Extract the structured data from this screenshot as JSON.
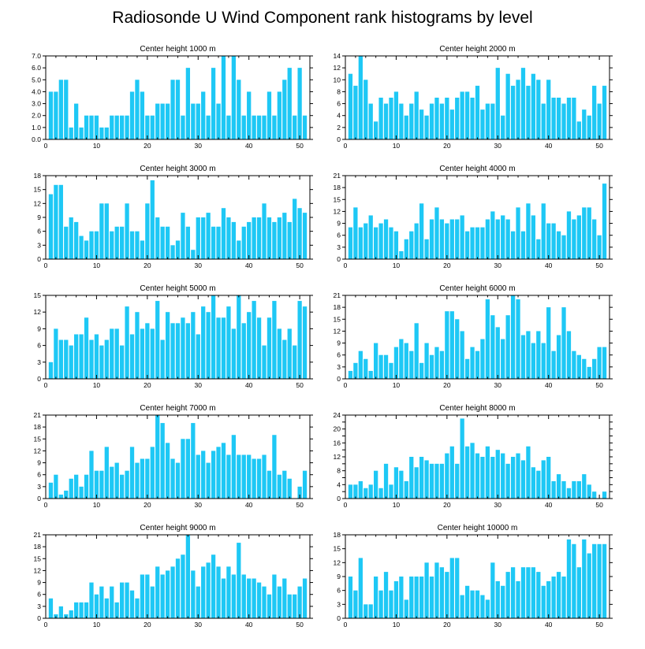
{
  "title": "Radiosonde U Wind Component rank histograms by level",
  "bar_color": "#1ec8f5",
  "chart_data": [
    {
      "type": "bar",
      "title": "Center height 1000 m",
      "xlim": [
        0,
        52
      ],
      "ylim": [
        0,
        7
      ],
      "xticks": [
        0,
        10,
        20,
        30,
        40,
        50
      ],
      "yticks": [
        0,
        1,
        2,
        3,
        4,
        5,
        6,
        7
      ],
      "ytick_labels": [
        "0.0",
        "1.0",
        "2.0",
        "3.0",
        "4.0",
        "5.0",
        "6.0",
        "7.0"
      ],
      "x": [
        1,
        2,
        3,
        4,
        5,
        6,
        7,
        8,
        9,
        10,
        11,
        12,
        13,
        14,
        15,
        16,
        17,
        18,
        19,
        20,
        21,
        22,
        23,
        24,
        25,
        26,
        27,
        28,
        29,
        30,
        31,
        32,
        33,
        34,
        35,
        36,
        37,
        38,
        39,
        40,
        41,
        42,
        43,
        44,
        45,
        46,
        47,
        48,
        49,
        50,
        51
      ],
      "values": [
        4,
        4,
        5,
        5,
        1,
        3,
        1,
        2,
        2,
        2,
        1,
        1,
        2,
        2,
        2,
        2,
        4,
        5,
        4,
        2,
        2,
        3,
        3,
        3,
        5,
        5,
        2,
        6,
        3,
        3,
        4,
        2,
        6,
        3,
        7,
        2,
        7,
        5,
        2,
        4,
        2,
        2,
        2,
        4,
        2,
        4,
        5,
        6,
        2,
        6,
        2
      ]
    },
    {
      "type": "bar",
      "title": "Center height 2000 m",
      "xlim": [
        0,
        52
      ],
      "ylim": [
        0,
        14
      ],
      "xticks": [
        0,
        10,
        20,
        30,
        40,
        50
      ],
      "yticks": [
        0,
        2,
        4,
        6,
        8,
        10,
        12,
        14
      ],
      "ytick_labels": [
        "0",
        "2",
        "4",
        "6",
        "8",
        "10",
        "12",
        "14"
      ],
      "x": [
        1,
        2,
        3,
        4,
        5,
        6,
        7,
        8,
        9,
        10,
        11,
        12,
        13,
        14,
        15,
        16,
        17,
        18,
        19,
        20,
        21,
        22,
        23,
        24,
        25,
        26,
        27,
        28,
        29,
        30,
        31,
        32,
        33,
        34,
        35,
        36,
        37,
        38,
        39,
        40,
        41,
        42,
        43,
        44,
        45,
        46,
        47,
        48,
        49,
        50,
        51
      ],
      "values": [
        11,
        9,
        14,
        10,
        6,
        3,
        7,
        6,
        7,
        8,
        6,
        4,
        6,
        8,
        5,
        4,
        6,
        7,
        6,
        7,
        5,
        7,
        8,
        8,
        7,
        9,
        5,
        6,
        6,
        12,
        4,
        11,
        9,
        10,
        12,
        9,
        11,
        10,
        6,
        10,
        7,
        7,
        6,
        7,
        7,
        3,
        5,
        4,
        9,
        6,
        9
      ]
    },
    {
      "type": "bar",
      "title": "Center height 3000 m",
      "xlim": [
        0,
        52
      ],
      "ylim": [
        0,
        18
      ],
      "xticks": [
        0,
        10,
        20,
        30,
        40,
        50
      ],
      "yticks": [
        0,
        3,
        6,
        9,
        12,
        15,
        18
      ],
      "ytick_labels": [
        "0",
        "3",
        "6",
        "9",
        "12",
        "15",
        "18"
      ],
      "x": [
        1,
        2,
        3,
        4,
        5,
        6,
        7,
        8,
        9,
        10,
        11,
        12,
        13,
        14,
        15,
        16,
        17,
        18,
        19,
        20,
        21,
        22,
        23,
        24,
        25,
        26,
        27,
        28,
        29,
        30,
        31,
        32,
        33,
        34,
        35,
        36,
        37,
        38,
        39,
        40,
        41,
        42,
        43,
        44,
        45,
        46,
        47,
        48,
        49,
        50,
        51
      ],
      "values": [
        14,
        16,
        16,
        7,
        9,
        8,
        5,
        4,
        6,
        6,
        12,
        12,
        6,
        7,
        7,
        12,
        6,
        6,
        4,
        12,
        17,
        9,
        7,
        7,
        3,
        4,
        10,
        7,
        2,
        9,
        9,
        10,
        7,
        7,
        11,
        9,
        8,
        4,
        7,
        8,
        9,
        9,
        12,
        9,
        8,
        9,
        10,
        8,
        13,
        11,
        10
      ]
    },
    {
      "type": "bar",
      "title": "Center height 4000 m",
      "xlim": [
        0,
        52
      ],
      "ylim": [
        0,
        21
      ],
      "xticks": [
        0,
        10,
        20,
        30,
        40,
        50
      ],
      "yticks": [
        0,
        3,
        6,
        9,
        12,
        15,
        18,
        21
      ],
      "ytick_labels": [
        "0",
        "3",
        "6",
        "9",
        "12",
        "15",
        "18",
        "21"
      ],
      "x": [
        1,
        2,
        3,
        4,
        5,
        6,
        7,
        8,
        9,
        10,
        11,
        12,
        13,
        14,
        15,
        16,
        17,
        18,
        19,
        20,
        21,
        22,
        23,
        24,
        25,
        26,
        27,
        28,
        29,
        30,
        31,
        32,
        33,
        34,
        35,
        36,
        37,
        38,
        39,
        40,
        41,
        42,
        43,
        44,
        45,
        46,
        47,
        48,
        49,
        50,
        51
      ],
      "values": [
        8,
        13,
        8,
        9,
        11,
        8,
        9,
        10,
        8,
        7,
        2,
        5,
        7,
        9,
        14,
        5,
        10,
        13,
        10,
        9,
        10,
        10,
        11,
        7,
        8,
        8,
        8,
        10,
        12,
        10,
        11,
        10,
        7,
        13,
        7,
        14,
        11,
        5,
        14,
        9,
        9,
        7,
        6,
        12,
        10,
        11,
        13,
        13,
        10,
        6,
        19
      ]
    },
    {
      "type": "bar",
      "title": "Center height 5000 m",
      "xlim": [
        0,
        52
      ],
      "ylim": [
        0,
        15
      ],
      "xticks": [
        0,
        10,
        20,
        30,
        40,
        50
      ],
      "yticks": [
        0,
        3,
        6,
        9,
        12,
        15
      ],
      "ytick_labels": [
        "0",
        "3",
        "6",
        "9",
        "12",
        "15"
      ],
      "x": [
        1,
        2,
        3,
        4,
        5,
        6,
        7,
        8,
        9,
        10,
        11,
        12,
        13,
        14,
        15,
        16,
        17,
        18,
        19,
        20,
        21,
        22,
        23,
        24,
        25,
        26,
        27,
        28,
        29,
        30,
        31,
        32,
        33,
        34,
        35,
        36,
        37,
        38,
        39,
        40,
        41,
        42,
        43,
        44,
        45,
        46,
        47,
        48,
        49,
        50,
        51
      ],
      "values": [
        3,
        9,
        7,
        7,
        6,
        8,
        8,
        11,
        7,
        8,
        6,
        7,
        9,
        9,
        6,
        13,
        8,
        12,
        9,
        10,
        9,
        14,
        7,
        12,
        10,
        10,
        11,
        10,
        12,
        8,
        13,
        12,
        15,
        11,
        11,
        13,
        9,
        15,
        10,
        12,
        14,
        11,
        6,
        11,
        14,
        9,
        7,
        9,
        6,
        14,
        13
      ]
    },
    {
      "type": "bar",
      "title": "Center height 6000 m",
      "xlim": [
        0,
        52
      ],
      "ylim": [
        0,
        21
      ],
      "xticks": [
        0,
        10,
        20,
        30,
        40,
        50
      ],
      "yticks": [
        0,
        3,
        6,
        9,
        12,
        15,
        18,
        21
      ],
      "ytick_labels": [
        "0",
        "3",
        "6",
        "9",
        "12",
        "15",
        "18",
        "21"
      ],
      "x": [
        1,
        2,
        3,
        4,
        5,
        6,
        7,
        8,
        9,
        10,
        11,
        12,
        13,
        14,
        15,
        16,
        17,
        18,
        19,
        20,
        21,
        22,
        23,
        24,
        25,
        26,
        27,
        28,
        29,
        30,
        31,
        32,
        33,
        34,
        35,
        36,
        37,
        38,
        39,
        40,
        41,
        42,
        43,
        44,
        45,
        46,
        47,
        48,
        49,
        50,
        51
      ],
      "values": [
        2,
        4,
        7,
        5,
        2,
        9,
        6,
        6,
        4,
        8,
        10,
        9,
        7,
        14,
        4,
        9,
        6,
        8,
        7,
        17,
        17,
        15,
        12,
        5,
        8,
        7,
        10,
        20,
        16,
        13,
        10,
        16,
        21,
        20,
        11,
        12,
        9,
        12,
        9,
        18,
        7,
        11,
        18,
        12,
        7,
        6,
        5,
        3,
        5,
        8,
        8
      ]
    },
    {
      "type": "bar",
      "title": "Center height 7000 m",
      "xlim": [
        0,
        52
      ],
      "ylim": [
        0,
        21
      ],
      "xticks": [
        0,
        10,
        20,
        30,
        40,
        50
      ],
      "yticks": [
        0,
        3,
        6,
        9,
        12,
        15,
        18,
        21
      ],
      "ytick_labels": [
        "0",
        "3",
        "6",
        "9",
        "12",
        "15",
        "18",
        "21"
      ],
      "x": [
        1,
        2,
        3,
        4,
        5,
        6,
        7,
        8,
        9,
        10,
        11,
        12,
        13,
        14,
        15,
        16,
        17,
        18,
        19,
        20,
        21,
        22,
        23,
        24,
        25,
        26,
        27,
        28,
        29,
        30,
        31,
        32,
        33,
        34,
        35,
        36,
        37,
        38,
        39,
        40,
        41,
        42,
        43,
        44,
        45,
        46,
        47,
        48,
        49,
        50,
        51
      ],
      "values": [
        4,
        6,
        1,
        2,
        5,
        6,
        3,
        6,
        12,
        7,
        7,
        13,
        8,
        9,
        6,
        7,
        13,
        9,
        10,
        10,
        13,
        21,
        19,
        14,
        10,
        9,
        15,
        15,
        19,
        11,
        12,
        9,
        12,
        13,
        14,
        11,
        16,
        11,
        11,
        11,
        10,
        10,
        11,
        7,
        16,
        6,
        7,
        5,
        0,
        3,
        7
      ]
    },
    {
      "type": "bar",
      "title": "Center height 8000 m",
      "xlim": [
        0,
        52
      ],
      "ylim": [
        0,
        24
      ],
      "xticks": [
        0,
        10,
        20,
        30,
        40,
        50
      ],
      "yticks": [
        0,
        2,
        4,
        6,
        8,
        10,
        12,
        14,
        16,
        18,
        20,
        22,
        24
      ],
      "ytick_labels": [
        "0",
        "",
        "4",
        "",
        "8",
        "",
        "12",
        "",
        "16",
        "",
        "20",
        "",
        "24"
      ],
      "x": [
        1,
        2,
        3,
        4,
        5,
        6,
        7,
        8,
        9,
        10,
        11,
        12,
        13,
        14,
        15,
        16,
        17,
        18,
        19,
        20,
        21,
        22,
        23,
        24,
        25,
        26,
        27,
        28,
        29,
        30,
        31,
        32,
        33,
        34,
        35,
        36,
        37,
        38,
        39,
        40,
        41,
        42,
        43,
        44,
        45,
        46,
        47,
        48,
        49,
        50,
        51
      ],
      "values": [
        4,
        4,
        5,
        3,
        4,
        8,
        3,
        10,
        4,
        9,
        8,
        5,
        12,
        9,
        12,
        11,
        10,
        10,
        10,
        13,
        15,
        10,
        23,
        15,
        16,
        13,
        12,
        15,
        12,
        14,
        13,
        10,
        12,
        13,
        11,
        15,
        9,
        8,
        11,
        12,
        5,
        7,
        5,
        3,
        5,
        5,
        7,
        4,
        2,
        0,
        2
      ]
    },
    {
      "type": "bar",
      "title": "Center height 9000 m",
      "xlim": [
        0,
        52
      ],
      "ylim": [
        0,
        21
      ],
      "xticks": [
        0,
        10,
        20,
        30,
        40,
        50
      ],
      "yticks": [
        0,
        3,
        6,
        9,
        12,
        15,
        18,
        21
      ],
      "ytick_labels": [
        "0",
        "3",
        "6",
        "9",
        "12",
        "15",
        "18",
        "21"
      ],
      "x": [
        1,
        2,
        3,
        4,
        5,
        6,
        7,
        8,
        9,
        10,
        11,
        12,
        13,
        14,
        15,
        16,
        17,
        18,
        19,
        20,
        21,
        22,
        23,
        24,
        25,
        26,
        27,
        28,
        29,
        30,
        31,
        32,
        33,
        34,
        35,
        36,
        37,
        38,
        39,
        40,
        41,
        42,
        43,
        44,
        45,
        46,
        47,
        48,
        49,
        50,
        51
      ],
      "values": [
        5,
        1,
        3,
        1,
        2,
        4,
        4,
        4,
        9,
        6,
        8,
        5,
        8,
        4,
        9,
        9,
        7,
        5,
        11,
        11,
        8,
        13,
        11,
        12,
        13,
        15,
        16,
        21,
        12,
        8,
        13,
        14,
        16,
        13,
        10,
        13,
        11,
        19,
        11,
        10,
        10,
        9,
        8,
        6,
        11,
        8,
        10,
        6,
        6,
        8,
        10
      ]
    },
    {
      "type": "bar",
      "title": "Center height 10000 m",
      "xlim": [
        0,
        52
      ],
      "ylim": [
        0,
        18
      ],
      "xticks": [
        0,
        10,
        20,
        30,
        40,
        50
      ],
      "yticks": [
        0,
        3,
        6,
        9,
        12,
        15,
        18
      ],
      "ytick_labels": [
        "0",
        "3",
        "6",
        "9",
        "12",
        "15",
        "18"
      ],
      "x": [
        1,
        2,
        3,
        4,
        5,
        6,
        7,
        8,
        9,
        10,
        11,
        12,
        13,
        14,
        15,
        16,
        17,
        18,
        19,
        20,
        21,
        22,
        23,
        24,
        25,
        26,
        27,
        28,
        29,
        30,
        31,
        32,
        33,
        34,
        35,
        36,
        37,
        38,
        39,
        40,
        41,
        42,
        43,
        44,
        45,
        46,
        47,
        48,
        49,
        50,
        51
      ],
      "values": [
        9,
        6,
        13,
        3,
        3,
        9,
        6,
        10,
        6,
        8,
        9,
        4,
        9,
        9,
        9,
        12,
        9,
        12,
        11,
        10,
        13,
        13,
        5,
        7,
        6,
        6,
        5,
        4,
        12,
        8,
        7,
        10,
        11,
        8,
        11,
        11,
        11,
        10,
        7,
        8,
        9,
        10,
        9,
        17,
        16,
        11,
        17,
        14,
        16,
        16,
        16
      ]
    }
  ]
}
